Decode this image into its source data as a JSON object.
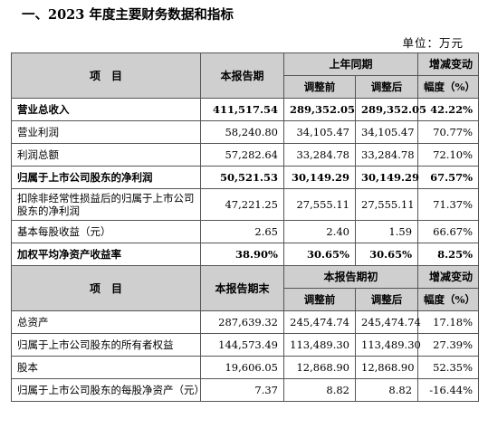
{
  "heading": "一、2023 年度主要财务数据和指标",
  "unit": "单位：万元",
  "table1": {
    "col_item": "项　目",
    "col_current": "本报告期",
    "col_prior": "上年同期",
    "col_adj_before": "调整前",
    "col_adj_after": "调整后",
    "col_change_l1": "增减变动",
    "col_change_l2": "幅度（%）",
    "rows": [
      {
        "label": "营业总收入",
        "current": "411,517.54",
        "before": "289,352.05",
        "after": "289,352.05",
        "change": "42.22%",
        "bold": true
      },
      {
        "label": "营业利润",
        "current": "58,240.80",
        "before": "34,105.47",
        "after": "34,105.47",
        "change": "70.77%"
      },
      {
        "label": "利润总额",
        "current": "57,282.64",
        "before": "33,284.78",
        "after": "33,284.78",
        "change": "72.10%"
      },
      {
        "label": "归属于上市公司股东的净利润",
        "current": "50,521.53",
        "before": "30,149.29",
        "after": "30,149.29",
        "change": "67.57%",
        "bold": true
      },
      {
        "label": "扣除非经常性损益后的归属于上市公司股东的净利润",
        "current": "47,221.25",
        "before": "27,555.11",
        "after": "27,555.11",
        "change": "71.37%",
        "tall": true
      },
      {
        "label": "基本每股收益（元）",
        "current": "2.65",
        "before": "2.40",
        "after": "1.59",
        "change": "66.67%"
      },
      {
        "label": "加权平均净资产收益率",
        "current": "38.90%",
        "before": "30.65%",
        "after": "30.65%",
        "change": "8.25%",
        "bold": true
      }
    ]
  },
  "table2": {
    "col_item": "项　目",
    "col_current": "本报告期末",
    "col_prior": "本报告期初",
    "col_adj_before": "调整前",
    "col_adj_after": "调整后",
    "col_change_l1": "增减变动",
    "col_change_l2": "幅度（%）",
    "rows": [
      {
        "label": "总资产",
        "current": "287,639.32",
        "before": "245,474.74",
        "after": "245,474.74",
        "change": "17.18%"
      },
      {
        "label": "归属于上市公司股东的所有者权益",
        "current": "144,573.49",
        "before": "113,489.30",
        "after": "113,489.30",
        "change": "27.39%"
      },
      {
        "label": "股本",
        "current": "19,606.05",
        "before": "12,868.90",
        "after": "12,868.90",
        "change": "52.35%"
      },
      {
        "label": "归属于上市公司股东的每股净资产（元）",
        "current": "7.37",
        "before": "8.82",
        "after": "8.82",
        "change": "-16.44%"
      }
    ]
  }
}
